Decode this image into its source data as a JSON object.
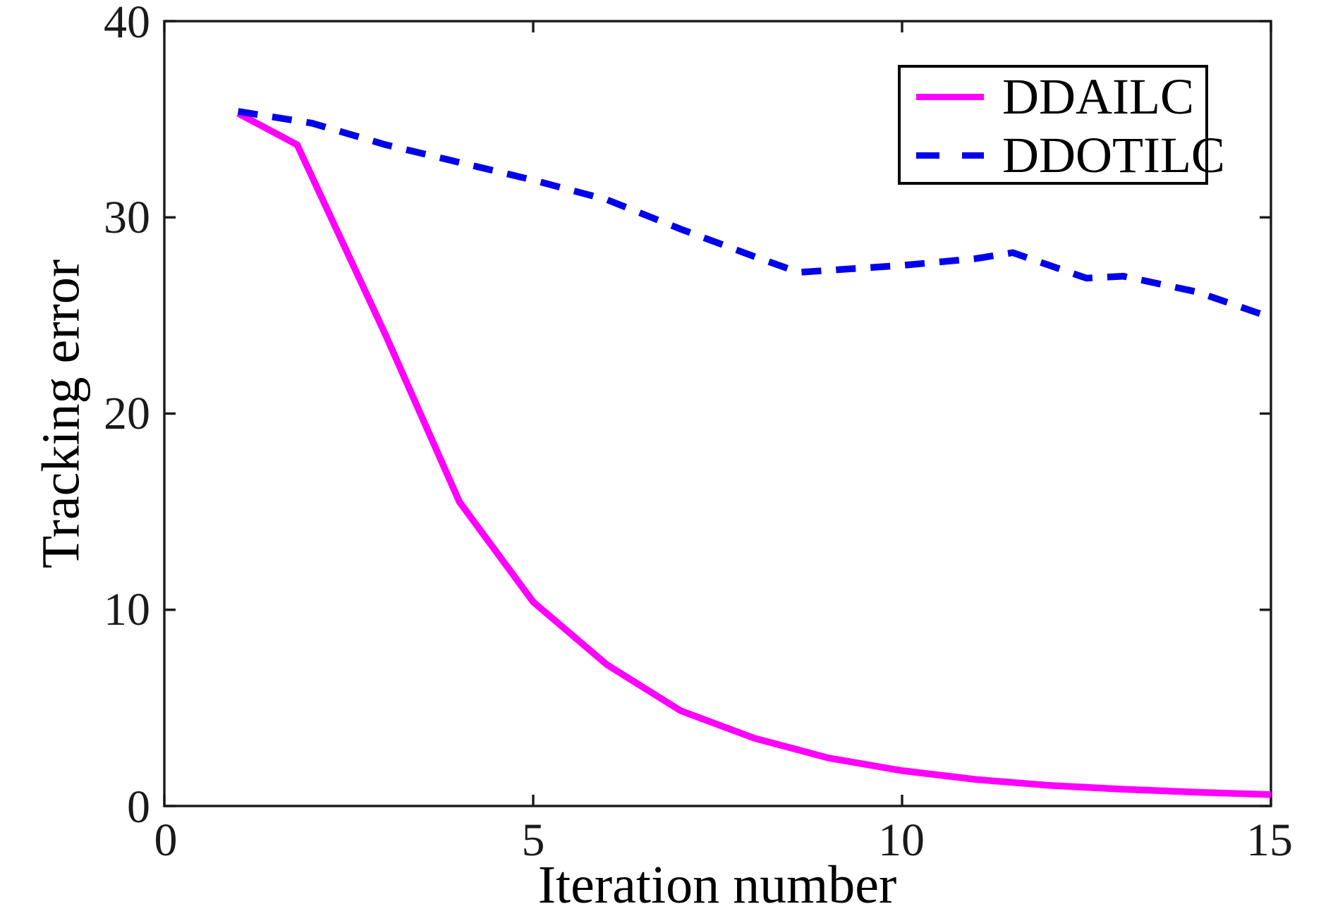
{
  "chart_data": {
    "type": "line",
    "title": "",
    "xlabel": "Iteration number",
    "ylabel": "Tracking error",
    "xlim": [
      0,
      15
    ],
    "ylim": [
      0,
      40
    ],
    "xticks": [
      0,
      5,
      10,
      15
    ],
    "yticks": [
      0,
      10,
      20,
      30,
      40
    ],
    "grid": false,
    "box": true,
    "legend_position": "top-right",
    "axis_color": "#1a1a1a",
    "series": [
      {
        "name": "DDAILC",
        "color": "#FF00FF",
        "style": "solid",
        "line_width": 9.5,
        "x": [
          1,
          1.8,
          3,
          4,
          5,
          6,
          7,
          8,
          9,
          10,
          11,
          12,
          13,
          14,
          15
        ],
        "y": [
          35.3,
          33.7,
          24.0,
          15.5,
          10.4,
          7.2,
          4.85,
          3.45,
          2.45,
          1.8,
          1.35,
          1.05,
          0.85,
          0.7,
          0.58
        ]
      },
      {
        "name": "DDOTILC",
        "color": "#0000EE",
        "style": "dashed",
        "dash_pattern": "28 21",
        "line_width": 9.5,
        "x": [
          1,
          2,
          3,
          4,
          5,
          6,
          7,
          8,
          8.6,
          9,
          10,
          11,
          11.5,
          12,
          12.5,
          13,
          14,
          15
        ],
        "y": [
          35.4,
          34.8,
          33.7,
          32.8,
          31.9,
          30.9,
          29.4,
          28.0,
          27.2,
          27.3,
          27.55,
          27.9,
          28.2,
          27.55,
          26.9,
          27.0,
          26.2,
          24.9
        ]
      }
    ]
  },
  "axes": {
    "x_label": "Iteration number",
    "y_label": "Tracking error",
    "x_tick_labels": [
      "0",
      "5",
      "10",
      "15"
    ],
    "y_tick_labels": [
      "40",
      "30",
      "20",
      "10",
      "0"
    ]
  },
  "legend": {
    "items": [
      {
        "label": "DDAILC",
        "color": "#FF00FF",
        "style": "solid"
      },
      {
        "label": "DDOTILC",
        "color": "#0000EE",
        "style": "dashed"
      }
    ]
  }
}
